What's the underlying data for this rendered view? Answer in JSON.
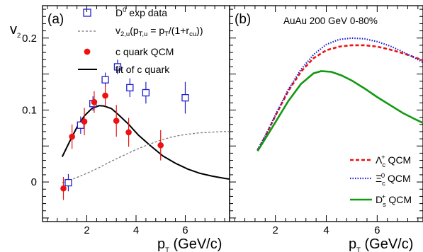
{
  "figure": {
    "y_axis_label_main": "v",
    "y_axis_label_sub": "2",
    "x_axis_label_main": "p",
    "x_axis_label_sub": "T",
    "x_axis_label_unit": " (GeV/c)"
  },
  "legend_a": {
    "d0": "D",
    "d0_sup": "0",
    "d0_rest": " exp data",
    "v2u_pre": "v",
    "v2u_sub1": "2,u",
    "v2u_mid1": "(p",
    "v2u_sub2": "T,u",
    "v2u_mid2": " = p",
    "v2u_sub3": "T",
    "v2u_mid3": "/(1+r",
    "v2u_sub4": "cu",
    "v2u_end": "))",
    "cquark": "c quark QCM",
    "fit": "fit of c quark"
  },
  "legend_b": {
    "lc_main": "Λ",
    "lc_sub": "c",
    "lc_sup": "+",
    "lc_rest": " QCM",
    "xic_main": "Ξ",
    "xic_sub": "c",
    "xic_sup": "0",
    "xic_rest": " QCM",
    "ds_main": "D",
    "ds_sub": "s",
    "ds_sup": "+",
    "ds_rest": " QCM"
  },
  "chart_data": [
    {
      "panel": "a",
      "panel_label": "(a)",
      "type": "scatter",
      "xlim": [
        0.2,
        7.8
      ],
      "ylim": [
        -0.055,
        0.245
      ],
      "xticks": [
        2,
        4,
        6
      ],
      "yticks": [
        0,
        0.1,
        0.2
      ],
      "ytick_labels": [
        "0",
        "0.1",
        "0.2"
      ],
      "xtick_labels": [
        "2",
        "4",
        "6"
      ],
      "series": [
        {
          "name": "D0 exp data",
          "kind": "errorbar",
          "marker": "open-square",
          "color": "#1f1fcc",
          "points": [
            {
              "x": 1.25,
              "y": -0.001,
              "err": 0.012
            },
            {
              "x": 1.75,
              "y": 0.079,
              "err": 0.012
            },
            {
              "x": 2.25,
              "y": 0.109,
              "err": 0.01
            },
            {
              "x": 2.75,
              "y": 0.142,
              "err": 0.01
            },
            {
              "x": 3.25,
              "y": 0.16,
              "err": 0.01
            },
            {
              "x": 3.75,
              "y": 0.131,
              "err": 0.013
            },
            {
              "x": 4.4,
              "y": 0.124,
              "err": 0.015
            },
            {
              "x": 6.0,
              "y": 0.117,
              "err": 0.022
            }
          ]
        },
        {
          "name": "c quark QCM",
          "kind": "errorbar",
          "marker": "filled-circle",
          "color": "#ee1111",
          "points": [
            {
              "x": 1.05,
              "y": -0.009,
              "err": 0.016
            },
            {
              "x": 1.4,
              "y": 0.063,
              "err": 0.017
            },
            {
              "x": 1.9,
              "y": 0.084,
              "err": 0.019
            },
            {
              "x": 2.3,
              "y": 0.111,
              "err": 0.015
            },
            {
              "x": 2.75,
              "y": 0.12,
              "err": 0.015
            },
            {
              "x": 3.2,
              "y": 0.085,
              "err": 0.022
            },
            {
              "x": 3.7,
              "y": 0.069,
              "err": 0.02
            },
            {
              "x": 5.0,
              "y": 0.051,
              "err": 0.021
            }
          ]
        },
        {
          "name": "fit of c quark",
          "kind": "line",
          "color": "#000000",
          "x": [
            1.0,
            1.3,
            1.6,
            1.9,
            2.2,
            2.5,
            2.7,
            3.0,
            3.3,
            3.7,
            4.1,
            4.6,
            5.1,
            5.6,
            6.1,
            6.6,
            7.1,
            7.6,
            7.8
          ],
          "y": [
            0.035,
            0.056,
            0.076,
            0.092,
            0.102,
            0.106,
            0.1055,
            0.102,
            0.093,
            0.08,
            0.065,
            0.05,
            0.036,
            0.026,
            0.018,
            0.012,
            0.008,
            0.005,
            0.004
          ]
        },
        {
          "name": "v2,u(pT,u = pT/(1+rcu))",
          "kind": "dashed-line",
          "color": "#777777",
          "x": [
            1.0,
            1.5,
            2.0,
            2.5,
            3.0,
            3.5,
            4.0,
            4.5,
            5.0,
            5.5,
            6.0,
            6.5,
            7.0,
            7.5,
            7.8
          ],
          "y": [
            -0.001,
            0.005,
            0.012,
            0.02,
            0.029,
            0.037,
            0.045,
            0.052,
            0.058,
            0.063,
            0.066,
            0.068,
            0.069,
            0.07,
            0.07
          ]
        }
      ]
    },
    {
      "panel": "b",
      "panel_label": "(b)",
      "annotation": "AuAu 200 GeV 0-80%",
      "type": "line",
      "xlim": [
        0.2,
        7.8
      ],
      "ylim": [
        -0.055,
        0.245
      ],
      "xticks": [
        2,
        4,
        6
      ],
      "yticks": [
        0,
        0.1,
        0.2
      ],
      "xtick_labels": [
        "2",
        "4",
        "6"
      ],
      "series": [
        {
          "name": "Λc+ QCM",
          "color": "#ee1111",
          "dash": "5,3",
          "x": [
            1.3,
            1.6,
            2.0,
            2.5,
            3.0,
            3.5,
            4.0,
            4.5,
            5.0,
            5.5,
            6.0,
            6.5,
            7.0,
            7.5,
            7.8
          ],
          "y": [
            0.044,
            0.063,
            0.092,
            0.126,
            0.153,
            0.172,
            0.183,
            0.188,
            0.19,
            0.19,
            0.188,
            0.184,
            0.179,
            0.173,
            0.169
          ]
        },
        {
          "name": "Ξc0 QCM",
          "color": "#1f1fcc",
          "dash": "1.5,2",
          "x": [
            1.3,
            1.6,
            2.0,
            2.5,
            3.0,
            3.5,
            4.0,
            4.5,
            5.0,
            5.5,
            6.0,
            6.5,
            7.0,
            7.5,
            7.8
          ],
          "y": [
            0.045,
            0.064,
            0.093,
            0.128,
            0.156,
            0.177,
            0.191,
            0.198,
            0.2,
            0.199,
            0.195,
            0.189,
            0.181,
            0.172,
            0.166
          ]
        },
        {
          "name": "Ds+ QCM",
          "color": "#119911",
          "dash": "",
          "x": [
            1.3,
            1.6,
            2.0,
            2.5,
            3.0,
            3.5,
            3.8,
            4.2,
            4.6,
            5.0,
            5.5,
            6.0,
            6.5,
            7.0,
            7.5,
            7.8
          ],
          "y": [
            0.043,
            0.06,
            0.083,
            0.112,
            0.136,
            0.151,
            0.154,
            0.153,
            0.148,
            0.141,
            0.13,
            0.118,
            0.107,
            0.096,
            0.087,
            0.082
          ]
        }
      ]
    }
  ]
}
